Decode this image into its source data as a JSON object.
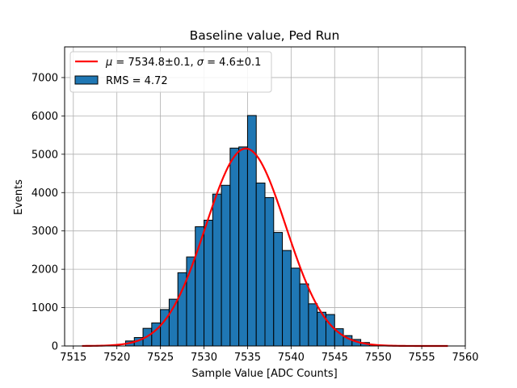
{
  "chart_data": {
    "type": "bar",
    "title": "Baseline value, Ped Run",
    "xlabel": "Sample Value [ADC Counts]",
    "ylabel": "Events",
    "xlim": [
      7514,
      7560
    ],
    "ylim": [
      0,
      7800
    ],
    "x_ticks": [
      7515,
      7520,
      7525,
      7530,
      7535,
      7540,
      7545,
      7550,
      7555,
      7560
    ],
    "y_ticks": [
      0,
      1000,
      2000,
      3000,
      4000,
      5000,
      6000,
      7000
    ],
    "grid": true,
    "legend_position": "top-left",
    "bin_width": 1,
    "bins": [
      7521.5,
      7522.5,
      7523.5,
      7524.5,
      7525.5,
      7526.5,
      7527.5,
      7528.5,
      7529.5,
      7530.5,
      7531.5,
      7532.5,
      7533.5,
      7534.5,
      7535.5,
      7536.5,
      7537.5,
      7538.5,
      7539.5,
      7540.5,
      7541.5,
      7542.5,
      7543.5,
      7544.5,
      7545.5,
      7546.5,
      7547.5,
      7548.5,
      7549.5
    ],
    "series": [
      {
        "type": "histogram",
        "name": "RMS = 4.72",
        "color": "#1f77b4",
        "edge_color": "#000000",
        "values": [
          130,
          220,
          460,
          600,
          950,
          1220,
          1910,
          2320,
          3110,
          3280,
          3960,
          4190,
          5160,
          5190,
          6010,
          4250,
          3870,
          2960,
          2490,
          2030,
          1620,
          1100,
          880,
          820,
          450,
          270,
          170,
          90,
          30
        ]
      },
      {
        "type": "line",
        "name": "$\\mu = 7534.8 \\pm 0.1$, $\\sigma = 4.6 \\pm 0.1$",
        "color": "#ff0000",
        "model": "gaussian",
        "mu": 7534.8,
        "sigma": 4.6,
        "amplitude": 5150,
        "x_range": [
          7516,
          7558
        ]
      }
    ],
    "legend": {
      "fit_prefix_mu": "μ",
      "fit_eq1": " = 7534.8±0.1, ",
      "fit_prefix_sigma": "σ",
      "fit_eq2": " = 4.6±0.1",
      "hist_label": "RMS = 4.72"
    }
  }
}
